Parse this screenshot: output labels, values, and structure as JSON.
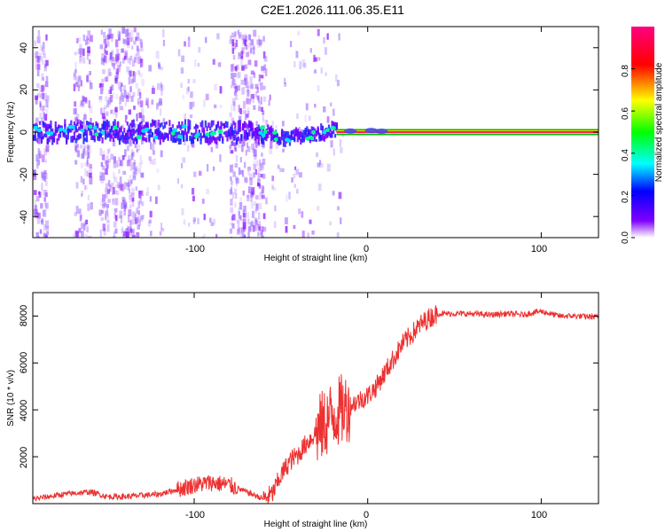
{
  "title": "C2E1.2026.111.06.35.E11",
  "chart_data": [
    {
      "type": "heatmap",
      "name": "spectrogram",
      "xlabel": "Height of straight line (km)",
      "ylabel": "Frequency (Hz)",
      "xlim": [
        -193,
        133
      ],
      "ylim": [
        -50,
        50
      ],
      "xticks": [
        -100,
        0,
        100
      ],
      "xtick_labels": [
        "-100",
        "0",
        "100"
      ],
      "yticks": [
        -40,
        -20,
        0,
        20,
        40
      ],
      "ytick_labels": [
        "-40",
        "-20",
        "0",
        "20",
        "40"
      ],
      "colorbar": {
        "label": "Normalized spectral amplitude",
        "range": [
          0,
          1
        ],
        "ticks": [
          0.0,
          0.2,
          0.4,
          0.6,
          0.8
        ],
        "tick_labels": [
          "0.0",
          "0.2",
          "0.4",
          "0.6",
          "0.8"
        ],
        "stops": [
          "#ffffff",
          "#8000ff",
          "#0000ff",
          "#00ffff",
          "#00ff00",
          "#ffff00",
          "#ff0000",
          "#ff0080"
        ]
      },
      "line_center_hz": [
        [
          -193,
          0
        ],
        [
          -60,
          0
        ],
        [
          -50,
          -3
        ],
        [
          -30,
          -1
        ],
        [
          -20,
          1
        ],
        [
          0,
          0
        ],
        [
          133,
          0
        ]
      ],
      "carrier_start_km": -18
    },
    {
      "type": "line",
      "name": "snr",
      "xlabel": "Height of straight line (km)",
      "ylabel": "SNR (10 * v/v)",
      "xlim": [
        -193,
        133
      ],
      "ylim": [
        0,
        9000
      ],
      "xticks": [
        -100,
        0,
        100
      ],
      "xtick_labels": [
        "-100",
        "0",
        "100"
      ],
      "yticks": [
        2000,
        4000,
        6000,
        8000
      ],
      "ytick_labels": [
        "2000",
        "4000",
        "6000",
        "8000"
      ],
      "color": "#ee3030",
      "series": [
        {
          "name": "SNR",
          "x": [
            -193,
            -175,
            -160,
            -150,
            -140,
            -120,
            -110,
            -100,
            -90,
            -80,
            -70,
            -60,
            -55,
            -50,
            -45,
            -40,
            -35,
            -30,
            -25,
            -20,
            -15,
            -10,
            -5,
            0,
            5,
            10,
            15,
            20,
            25,
            30,
            35,
            40,
            50,
            60,
            70,
            80,
            90,
            95,
            100,
            110,
            120,
            133
          ],
          "values": [
            200,
            400,
            500,
            300,
            300,
            400,
            600,
            800,
            900,
            800,
            500,
            200,
            400,
            1200,
            1800,
            2100,
            2600,
            3000,
            3400,
            3800,
            4000,
            4200,
            4400,
            4600,
            5000,
            5600,
            6200,
            6800,
            7200,
            7600,
            7900,
            8100,
            8100,
            8100,
            8050,
            8100,
            8050,
            8150,
            8200,
            8000,
            8000,
            7950
          ]
        }
      ]
    }
  ]
}
